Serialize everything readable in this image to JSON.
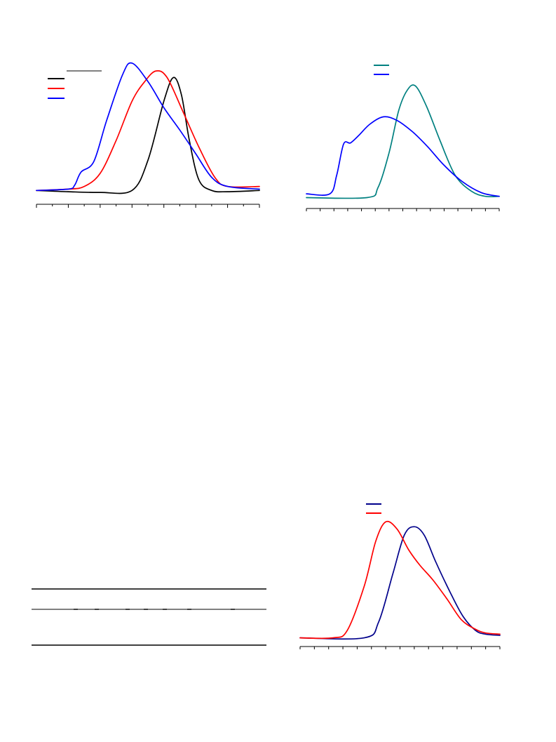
{
  "charts": [
    {
      "id": "fig1",
      "legend": {
        "rule_color": "#000000",
        "entries": [
          {
            "color": "#000000"
          },
          {
            "color": "#ff0000"
          },
          {
            "color": "#0000ff"
          }
        ]
      }
    },
    {
      "id": "fig2",
      "legend": {
        "entries": [
          {
            "color": "#008080"
          },
          {
            "color": "#0000ff"
          }
        ]
      }
    },
    {
      "id": "fig3",
      "legend": {
        "entries": [
          {
            "color": "#00008b"
          },
          {
            "color": "#ff0000"
          }
        ]
      }
    }
  ],
  "chart_data": [
    {
      "type": "line",
      "xlim": [
        0,
        7
      ],
      "ylim": [
        0,
        1
      ],
      "x_major_ticks": [
        0,
        1,
        2,
        3,
        4,
        5,
        6,
        7
      ],
      "x_minor_ticks": [
        0.5,
        1.5,
        2.5,
        3.5,
        4.5,
        5.5,
        6.5
      ],
      "tick_labels_visible": false,
      "series": [
        {
          "color": "#000000",
          "points": [
            [
              0,
              0.02
            ],
            [
              1,
              0.01
            ],
            [
              2,
              0.005
            ],
            [
              3,
              0.02
            ],
            [
              3.5,
              0.25
            ],
            [
              4,
              0.7
            ],
            [
              4.3,
              0.88
            ],
            [
              4.55,
              0.75
            ],
            [
              4.8,
              0.4
            ],
            [
              5.1,
              0.1
            ],
            [
              5.5,
              0.02
            ],
            [
              6,
              0.01
            ],
            [
              7,
              0.02
            ]
          ]
        },
        {
          "color": "#ff0000",
          "points": [
            [
              0,
              0.02
            ],
            [
              1,
              0.03
            ],
            [
              1.5,
              0.05
            ],
            [
              2,
              0.15
            ],
            [
              2.5,
              0.4
            ],
            [
              3,
              0.7
            ],
            [
              3.4,
              0.85
            ],
            [
              3.75,
              0.93
            ],
            [
              4.1,
              0.88
            ],
            [
              4.6,
              0.62
            ],
            [
              5.1,
              0.35
            ],
            [
              5.6,
              0.12
            ],
            [
              6,
              0.05
            ],
            [
              7,
              0.05
            ]
          ]
        },
        {
          "color": "#0000ff",
          "points": [
            [
              0,
              0.02
            ],
            [
              1,
              0.03
            ],
            [
              1.2,
              0.06
            ],
            [
              1.4,
              0.16
            ],
            [
              1.8,
              0.24
            ],
            [
              2.2,
              0.55
            ],
            [
              2.7,
              0.9
            ],
            [
              3,
              0.99
            ],
            [
              3.5,
              0.85
            ],
            [
              4,
              0.65
            ],
            [
              4.5,
              0.48
            ],
            [
              5,
              0.3
            ],
            [
              5.5,
              0.12
            ],
            [
              6,
              0.05
            ],
            [
              7,
              0.03
            ]
          ]
        }
      ]
    },
    {
      "type": "line",
      "xlim": [
        0,
        14
      ],
      "ylim": [
        0,
        1
      ],
      "x_major_ticks": [
        0,
        1,
        2,
        3,
        4,
        5,
        6,
        7,
        8,
        9,
        10,
        11,
        12,
        13,
        14
      ],
      "tick_labels_visible": false,
      "series": [
        {
          "color": "#008080",
          "points": [
            [
              0,
              0.02
            ],
            [
              4.4,
              0.02
            ],
            [
              5.2,
              0.1
            ],
            [
              6,
              0.38
            ],
            [
              6.7,
              0.72
            ],
            [
              7.3,
              0.88
            ],
            [
              7.9,
              0.92
            ],
            [
              8.7,
              0.76
            ],
            [
              9.7,
              0.48
            ],
            [
              10.8,
              0.2
            ],
            [
              12,
              0.07
            ],
            [
              13,
              0.03
            ],
            [
              14,
              0.03
            ]
          ]
        },
        {
          "color": "#0000ff",
          "points": [
            [
              0,
              0.05
            ],
            [
              1.7,
              0.05
            ],
            [
              2.2,
              0.2
            ],
            [
              2.7,
              0.45
            ],
            [
              3.2,
              0.46
            ],
            [
              3.8,
              0.52
            ],
            [
              4.6,
              0.61
            ],
            [
              5.6,
              0.67
            ],
            [
              6.6,
              0.64
            ],
            [
              7.7,
              0.55
            ],
            [
              8.8,
              0.43
            ],
            [
              10,
              0.28
            ],
            [
              11.3,
              0.15
            ],
            [
              12.7,
              0.06
            ],
            [
              14,
              0.03
            ]
          ]
        }
      ]
    },
    {
      "type": "line",
      "xlim": [
        0,
        14
      ],
      "ylim": [
        0,
        1
      ],
      "x_major_ticks": [
        0,
        1,
        2,
        3,
        4,
        5,
        6,
        7,
        8,
        9,
        10,
        11,
        12,
        13,
        14
      ],
      "tick_labels_visible": false,
      "series": [
        {
          "color": "#00008b",
          "points": [
            [
              0,
              0.02
            ],
            [
              4.5,
              0.02
            ],
            [
              5.5,
              0.15
            ],
            [
              6.5,
              0.55
            ],
            [
              7.3,
              0.87
            ],
            [
              8,
              0.94
            ],
            [
              8.7,
              0.87
            ],
            [
              9.5,
              0.65
            ],
            [
              10.5,
              0.4
            ],
            [
              11.4,
              0.2
            ],
            [
              12.3,
              0.08
            ],
            [
              13,
              0.05
            ],
            [
              14,
              0.04
            ]
          ]
        },
        {
          "color": "#ff0000",
          "points": [
            [
              0,
              0.02
            ],
            [
              2.3,
              0.02
            ],
            [
              3.3,
              0.08
            ],
            [
              4.5,
              0.45
            ],
            [
              5.3,
              0.82
            ],
            [
              6,
              0.98
            ],
            [
              6.8,
              0.92
            ],
            [
              7.6,
              0.75
            ],
            [
              8.4,
              0.62
            ],
            [
              9.3,
              0.5
            ],
            [
              10.3,
              0.34
            ],
            [
              11.3,
              0.17
            ],
            [
              12.3,
              0.09
            ],
            [
              13,
              0.06
            ],
            [
              14,
              0.05
            ]
          ]
        }
      ]
    }
  ],
  "table": {
    "columns": [
      "",
      "",
      "",
      "",
      "",
      "",
      "",
      "",
      ""
    ],
    "rows": []
  }
}
